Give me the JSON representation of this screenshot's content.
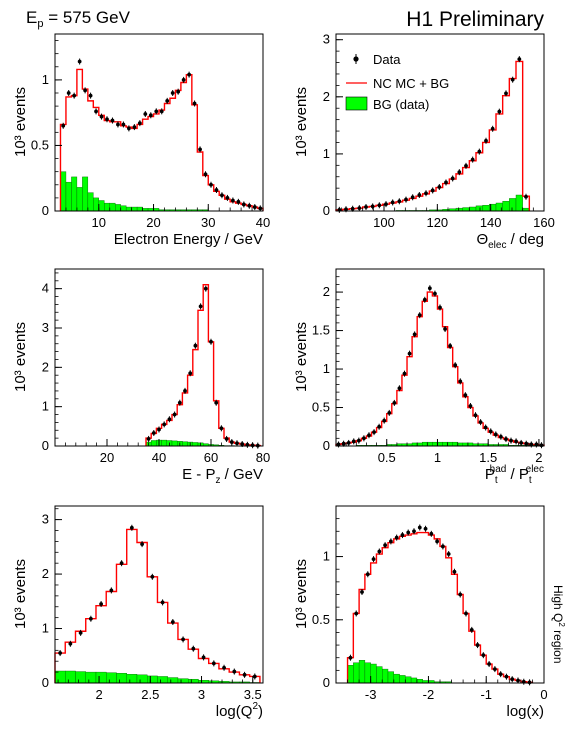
{
  "header": {
    "beam_energy_label": "E",
    "beam_energy_sub": "p",
    "beam_energy_value": " = 575 GeV",
    "experiment": "H1 Preliminary",
    "side_note": "High Q",
    "side_note_sup": "2",
    "side_note_tail": " region"
  },
  "legend": {
    "data": "Data",
    "mc": "NC MC + BG",
    "bg": "BG (data)"
  },
  "colors": {
    "data": "#000000",
    "mc": "#ff0000",
    "bg_fill": "#00ff00",
    "bg_stroke": "#006400"
  },
  "chart_data": [
    {
      "type": "histogram",
      "id": "electron-energy",
      "xlabel": "Electron Energy / GeV",
      "ylabel": "10³ events",
      "xlim": [
        2,
        40
      ],
      "ylim": [
        0,
        1.35
      ],
      "xticks": [
        10,
        20,
        30,
        40
      ],
      "yticks": [
        0,
        0.5,
        1
      ],
      "edges": [
        3,
        4,
        5,
        6,
        7,
        8,
        9,
        10,
        11,
        12,
        13,
        14,
        15,
        16,
        17,
        18,
        19,
        20,
        21,
        22,
        23,
        24,
        25,
        26,
        27,
        28,
        29,
        30,
        31,
        32,
        33,
        34,
        35,
        36,
        37,
        38,
        39,
        40
      ],
      "mc": [
        0.66,
        0.87,
        0.88,
        1.08,
        0.93,
        0.84,
        0.79,
        0.73,
        0.69,
        0.68,
        0.68,
        0.65,
        0.64,
        0.63,
        0.66,
        0.7,
        0.72,
        0.74,
        0.77,
        0.82,
        0.86,
        0.92,
        0.98,
        1.04,
        0.81,
        0.45,
        0.27,
        0.2,
        0.15,
        0.12,
        0.09,
        0.07,
        0.06,
        0.05,
        0.04,
        0.03,
        0.02
      ],
      "data": [
        0.65,
        0.9,
        0.88,
        1.14,
        0.92,
        0.88,
        0.76,
        0.72,
        0.7,
        0.69,
        0.66,
        0.66,
        0.63,
        0.64,
        0.67,
        0.74,
        0.73,
        0.76,
        0.76,
        0.84,
        0.9,
        0.91,
        1.0,
        1.04,
        0.82,
        0.47,
        0.28,
        0.2,
        0.16,
        0.12,
        0.1,
        0.08,
        0.07,
        0.05,
        0.04,
        0.03,
        0.02
      ],
      "bg": [
        0.3,
        0.22,
        0.26,
        0.18,
        0.26,
        0.14,
        0.1,
        0.08,
        0.06,
        0.06,
        0.05,
        0.04,
        0.03,
        0.03,
        0.03,
        0.02,
        0.02,
        0.02,
        0.01,
        0.01,
        0.01,
        0.01,
        0.01,
        0.01,
        0.01,
        0.01,
        0.01,
        0.0,
        0.0,
        0.0,
        0.0,
        0.0,
        0.0,
        0.0,
        0.0,
        0.0,
        0.0
      ]
    },
    {
      "type": "histogram",
      "id": "theta-elec",
      "xlabel": "Θ",
      "xlabel_sub": "elec",
      "xlabel_tail": " / deg",
      "ylabel": "10³ events",
      "xlim": [
        82,
        160
      ],
      "ylim": [
        0,
        3.1
      ],
      "xticks": [
        100,
        120,
        140,
        160
      ],
      "yticks": [
        0,
        1,
        2,
        3
      ],
      "edges": [
        82,
        84.5,
        87,
        89.5,
        92,
        94.5,
        97,
        99.5,
        102,
        104.5,
        107,
        109.5,
        112,
        114.5,
        117,
        119.5,
        122,
        124.5,
        127,
        129.5,
        132,
        134.5,
        137,
        139.5,
        142,
        144.5,
        147,
        149.5,
        152,
        154.5
      ],
      "mc": [
        0.02,
        0.03,
        0.04,
        0.05,
        0.07,
        0.08,
        0.1,
        0.12,
        0.14,
        0.16,
        0.19,
        0.22,
        0.26,
        0.3,
        0.35,
        0.41,
        0.48,
        0.56,
        0.65,
        0.76,
        0.88,
        1.02,
        1.2,
        1.42,
        1.7,
        2.02,
        2.32,
        2.62,
        0.26
      ],
      "data": [
        0.02,
        0.03,
        0.04,
        0.05,
        0.07,
        0.08,
        0.1,
        0.12,
        0.15,
        0.17,
        0.2,
        0.24,
        0.28,
        0.31,
        0.36,
        0.42,
        0.5,
        0.57,
        0.68,
        0.79,
        0.9,
        1.04,
        1.23,
        1.44,
        1.74,
        2.06,
        2.3,
        2.66,
        0.25
      ],
      "bg": [
        0.0,
        0.0,
        0.0,
        0.0,
        0.0,
        0.0,
        0.0,
        0.0,
        0.0,
        0.01,
        0.01,
        0.01,
        0.01,
        0.01,
        0.02,
        0.02,
        0.03,
        0.04,
        0.05,
        0.06,
        0.07,
        0.09,
        0.1,
        0.12,
        0.14,
        0.17,
        0.22,
        0.28,
        0.05
      ]
    },
    {
      "type": "histogram",
      "id": "e-minus-pz",
      "xlabel": "E - P",
      "xlabel_sub": "z",
      "xlabel_tail": " / GeV",
      "ylabel": "10³ events",
      "xlim": [
        0,
        80
      ],
      "ylim": [
        0,
        4.5
      ],
      "xticks": [
        20,
        40,
        60,
        80
      ],
      "yticks": [
        0,
        1,
        2,
        3,
        4
      ],
      "edges": [
        35,
        37,
        39,
        41,
        43,
        45,
        47,
        49,
        51,
        53,
        55,
        57,
        59,
        61,
        63,
        65,
        67,
        69,
        71,
        73,
        75,
        77,
        79
      ],
      "mc": [
        0.2,
        0.32,
        0.45,
        0.55,
        0.65,
        0.8,
        1.05,
        1.35,
        1.8,
        2.45,
        3.45,
        4.1,
        2.65,
        1.15,
        0.45,
        0.2,
        0.1,
        0.07,
        0.05,
        0.03,
        0.02,
        0.01
      ],
      "data": [
        0.18,
        0.33,
        0.42,
        0.55,
        0.68,
        0.8,
        1.1,
        1.4,
        1.85,
        2.55,
        3.55,
        4.0,
        2.65,
        1.1,
        0.45,
        0.18,
        0.1,
        0.07,
        0.05,
        0.03,
        0.02,
        0.01
      ],
      "bg": [
        0.1,
        0.14,
        0.15,
        0.15,
        0.14,
        0.13,
        0.12,
        0.11,
        0.1,
        0.09,
        0.08,
        0.06,
        0.04,
        0.03,
        0.02,
        0.01,
        0.01,
        0.0,
        0.0,
        0.0,
        0.0,
        0.0
      ]
    },
    {
      "type": "histogram",
      "id": "pt-ratio",
      "xlabel": "P",
      "xlabel_sub": "t",
      "xlabel_sup": "had",
      "xlabel_mid": " / P",
      "xlabel_sub2": "t",
      "xlabel_sup2": "elec",
      "ylabel": "10³ events",
      "xlim": [
        0.0,
        2.05
      ],
      "ylim": [
        0,
        2.3
      ],
      "xticks": [
        0.5,
        1,
        1.5,
        2
      ],
      "xtick_labels": [
        "0.5",
        "1",
        "1.5",
        "2"
      ],
      "yticks": [
        0,
        0.5,
        1,
        1.5,
        2
      ],
      "edges": [
        0.0,
        0.05,
        0.1,
        0.15,
        0.2,
        0.25,
        0.3,
        0.35,
        0.4,
        0.45,
        0.5,
        0.55,
        0.6,
        0.65,
        0.7,
        0.75,
        0.8,
        0.85,
        0.9,
        0.95,
        1.0,
        1.05,
        1.1,
        1.15,
        1.2,
        1.25,
        1.3,
        1.35,
        1.4,
        1.45,
        1.5,
        1.55,
        1.6,
        1.65,
        1.7,
        1.75,
        1.8,
        1.85,
        1.9,
        1.95,
        2.0,
        2.05
      ],
      "mc": [
        0.02,
        0.03,
        0.04,
        0.05,
        0.07,
        0.1,
        0.13,
        0.18,
        0.24,
        0.32,
        0.42,
        0.55,
        0.72,
        0.92,
        1.16,
        1.42,
        1.68,
        1.88,
        2.0,
        1.95,
        1.78,
        1.55,
        1.28,
        1.03,
        0.82,
        0.64,
        0.5,
        0.39,
        0.3,
        0.23,
        0.18,
        0.14,
        0.11,
        0.09,
        0.07,
        0.05,
        0.04,
        0.03,
        0.02,
        0.02,
        0.01
      ],
      "data": [
        0.02,
        0.03,
        0.04,
        0.06,
        0.07,
        0.1,
        0.14,
        0.18,
        0.25,
        0.33,
        0.43,
        0.56,
        0.75,
        0.94,
        1.2,
        1.45,
        1.7,
        1.9,
        2.05,
        1.98,
        1.8,
        1.52,
        1.3,
        1.05,
        0.84,
        0.66,
        0.52,
        0.4,
        0.31,
        0.24,
        0.19,
        0.15,
        0.12,
        0.09,
        0.07,
        0.06,
        0.04,
        0.03,
        0.02,
        0.02,
        0.01
      ],
      "bg": [
        0.0,
        0.0,
        0.0,
        0.0,
        0.01,
        0.01,
        0.01,
        0.01,
        0.01,
        0.01,
        0.02,
        0.02,
        0.03,
        0.03,
        0.03,
        0.04,
        0.04,
        0.05,
        0.05,
        0.05,
        0.05,
        0.05,
        0.05,
        0.05,
        0.04,
        0.04,
        0.04,
        0.03,
        0.03,
        0.03,
        0.02,
        0.02,
        0.02,
        0.02,
        0.01,
        0.01,
        0.01,
        0.01,
        0.01,
        0.01,
        0.0
      ]
    },
    {
      "type": "histogram",
      "id": "log-q2",
      "xlabel": "log(Q",
      "xlabel_sup": "2",
      "xlabel_tail": ")",
      "ylabel": "10³ events",
      "xlim": [
        1.57,
        3.6
      ],
      "ylim": [
        0,
        3.25
      ],
      "xticks": [
        2,
        2.5,
        3,
        3.5
      ],
      "xtick_labels": [
        "2",
        "2.5",
        "3",
        "3.5"
      ],
      "yticks": [
        0,
        1,
        2,
        3
      ],
      "edges": [
        1.57,
        1.67,
        1.77,
        1.87,
        1.97,
        2.07,
        2.17,
        2.27,
        2.37,
        2.47,
        2.57,
        2.67,
        2.77,
        2.87,
        2.97,
        3.07,
        3.17,
        3.27,
        3.37,
        3.47,
        3.57
      ],
      "mc": [
        0.55,
        0.75,
        0.95,
        1.18,
        1.42,
        1.68,
        2.18,
        2.82,
        2.58,
        1.95,
        1.48,
        1.1,
        0.8,
        0.62,
        0.45,
        0.36,
        0.26,
        0.2,
        0.15,
        0.12
      ],
      "data": [
        0.55,
        0.72,
        0.92,
        1.18,
        1.45,
        1.7,
        2.2,
        2.85,
        2.55,
        1.95,
        1.48,
        1.12,
        0.8,
        0.63,
        0.47,
        0.36,
        0.28,
        0.21,
        0.15,
        0.12
      ],
      "bg": [
        0.22,
        0.22,
        0.21,
        0.2,
        0.2,
        0.19,
        0.18,
        0.16,
        0.15,
        0.13,
        0.12,
        0.1,
        0.08,
        0.07,
        0.05,
        0.04,
        0.03,
        0.02,
        0.02,
        0.01
      ]
    },
    {
      "type": "histogram",
      "id": "log-x",
      "xlabel": "log(x)",
      "ylabel": "10³ events",
      "xlim": [
        -3.6,
        0.0
      ],
      "ylim": [
        0,
        1.4
      ],
      "xticks": [
        -3,
        -2,
        -1,
        0
      ],
      "xtick_labels": [
        "-3",
        "-2",
        "-1",
        "0"
      ],
      "yticks": [
        0,
        0.5,
        1
      ],
      "edges": [
        -3.4,
        -3.3,
        -3.2,
        -3.1,
        -3.0,
        -2.9,
        -2.8,
        -2.7,
        -2.6,
        -2.5,
        -2.4,
        -2.3,
        -2.2,
        -2.1,
        -2.0,
        -1.9,
        -1.8,
        -1.7,
        -1.6,
        -1.5,
        -1.4,
        -1.3,
        -1.2,
        -1.1,
        -1.0,
        -0.9,
        -0.8,
        -0.7,
        -0.6,
        -0.5,
        -0.4,
        -0.3,
        -0.2
      ],
      "mc": [
        0.2,
        0.55,
        0.74,
        0.86,
        0.95,
        1.02,
        1.07,
        1.11,
        1.14,
        1.16,
        1.17,
        1.18,
        1.19,
        1.19,
        1.17,
        1.14,
        1.08,
        0.99,
        0.86,
        0.7,
        0.55,
        0.41,
        0.3,
        0.22,
        0.15,
        0.11,
        0.07,
        0.05,
        0.03,
        0.02,
        0.01,
        0.005
      ],
      "data": [
        0.2,
        0.55,
        0.72,
        0.86,
        0.98,
        1.04,
        1.09,
        1.12,
        1.15,
        1.17,
        1.19,
        1.2,
        1.23,
        1.22,
        1.18,
        1.12,
        1.08,
        1.02,
        0.88,
        0.7,
        0.55,
        0.42,
        0.3,
        0.22,
        0.15,
        0.11,
        0.07,
        0.05,
        0.03,
        0.02,
        0.01,
        0.005
      ],
      "bg": [
        0.14,
        0.16,
        0.18,
        0.16,
        0.15,
        0.13,
        0.11,
        0.09,
        0.07,
        0.06,
        0.05,
        0.04,
        0.03,
        0.02,
        0.02,
        0.01,
        0.01,
        0.01,
        0.0,
        0.0,
        0.0,
        0.0,
        0.0,
        0.0,
        0.0,
        0.0,
        0.0,
        0.0,
        0.0,
        0.0,
        0.0,
        0.0
      ]
    }
  ]
}
